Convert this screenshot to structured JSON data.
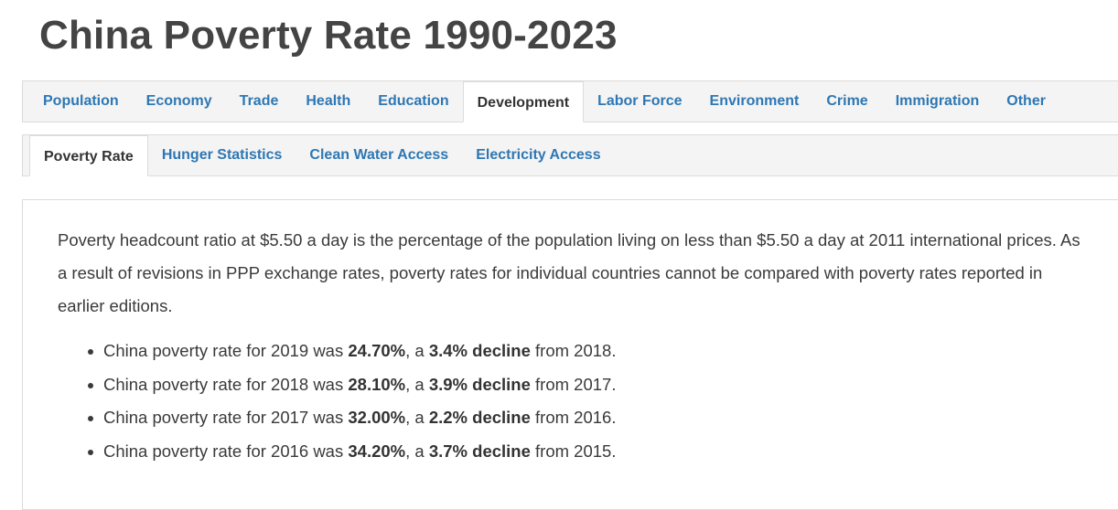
{
  "page": {
    "title": "China Poverty Rate 1990-2023"
  },
  "nav": {
    "tabs": [
      {
        "label": "Population"
      },
      {
        "label": "Economy"
      },
      {
        "label": "Trade"
      },
      {
        "label": "Health"
      },
      {
        "label": "Education"
      },
      {
        "label": "Development",
        "active": true
      },
      {
        "label": "Labor Force"
      },
      {
        "label": "Environment"
      },
      {
        "label": "Crime"
      },
      {
        "label": "Immigration"
      },
      {
        "label": "Other"
      }
    ]
  },
  "subnav": {
    "tabs": [
      {
        "label": "Poverty Rate",
        "active": true
      },
      {
        "label": "Hunger Statistics"
      },
      {
        "label": "Clean Water Access"
      },
      {
        "label": "Electricity Access"
      }
    ]
  },
  "content": {
    "description": "Poverty headcount ratio at $5.50 a day is the percentage of the population living on less than $5.50 a day at 2011 international prices. As a result of revisions in PPP exchange rates, poverty rates for individual countries cannot be compared with poverty rates reported in earlier editions.",
    "stats": [
      {
        "prefix": "China poverty rate for 2019 was ",
        "rate": "24.70%",
        "mid": ", a ",
        "change": "3.4% decline",
        "suffix": " from 2018."
      },
      {
        "prefix": "China poverty rate for 2018 was ",
        "rate": "28.10%",
        "mid": ", a ",
        "change": "3.9% decline",
        "suffix": " from 2017."
      },
      {
        "prefix": "China poverty rate for 2017 was ",
        "rate": "32.00%",
        "mid": ", a ",
        "change": "2.2% decline",
        "suffix": " from 2016."
      },
      {
        "prefix": "China poverty rate for 2016 was ",
        "rate": "34.20%",
        "mid": ", a ",
        "change": "3.7% decline",
        "suffix": " from 2015."
      }
    ]
  },
  "colors": {
    "link": "#2e77b3",
    "text": "#333333",
    "nav_background": "#f4f4f4",
    "border": "#dcdcdc"
  }
}
